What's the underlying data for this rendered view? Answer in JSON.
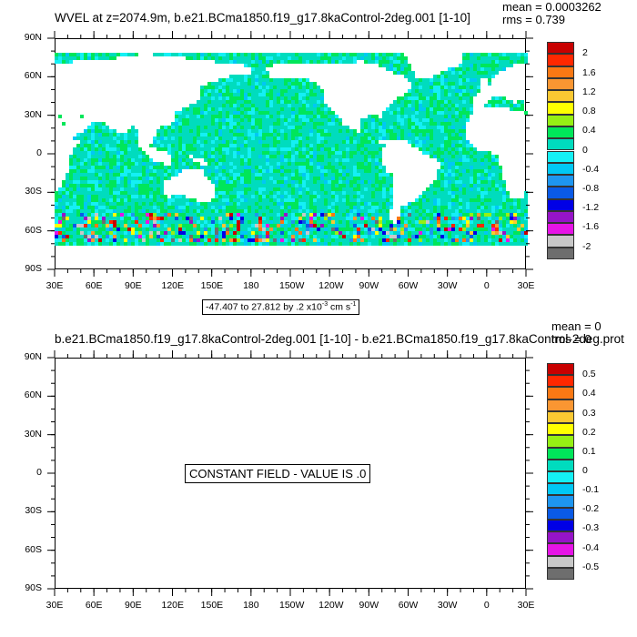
{
  "colors": [
    "#6e6e6e",
    "#c8c8c8",
    "#e614e6",
    "#9614c8",
    "#0000e6",
    "#0a5ae6",
    "#1e96f0",
    "#00c8f5",
    "#14f0f5",
    "#00dcbe",
    "#00e65a",
    "#96f014",
    "#ffff00",
    "#fac832",
    "#fa9632",
    "#fa7814",
    "#ff2800",
    "#c80000"
  ],
  "panel1": {
    "title": "WVEL at z=2074.9m, b.e21.BCma1850.f19_g17.8kaControl-2deg.001 [1-10]",
    "mean": "mean = 0.0003262",
    "rms": "rms = 0.739",
    "info_prefix": "-47.407 to 27.812 by .2 x10",
    "info_exp": "-3",
    "info_unit": " cm s",
    "info_unit_exp": "-1",
    "colorbar_labels": [
      "2",
      "1.6",
      "1.2",
      "0.8",
      "0.4",
      "0",
      "-0.4",
      "-0.8",
      "-1.2",
      "-1.6",
      "-2"
    ]
  },
  "panel2": {
    "title": "b.e21.BCma1850.f19_g17.8kaControl-2deg.001 [1-10] - b.e21.BCma1850.f19_g17.8kaControl-2deg.prot",
    "mean": "mean = 0",
    "rms": "rms = 0",
    "constant_text": "CONSTANT FIELD - VALUE IS .0",
    "colorbar_labels": [
      "0.5",
      "0.4",
      "0.3",
      "0.2",
      "0.1",
      "0",
      "-0.1",
      "-0.2",
      "-0.3",
      "-0.4",
      "-0.5"
    ]
  },
  "lat_labels": [
    "90N",
    "60N",
    "30N",
    "0",
    "30S",
    "60S",
    "90S"
  ],
  "lon_labels": [
    "30E",
    "60E",
    "90E",
    "120E",
    "150E",
    "180",
    "150W",
    "120W",
    "90W",
    "60W",
    "30W",
    "0",
    "30E"
  ]
}
